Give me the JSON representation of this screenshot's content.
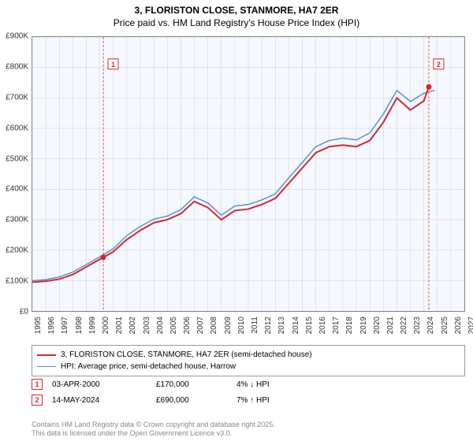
{
  "title": {
    "line1": "3, FLORISTON CLOSE, STANMORE, HA7 2ER",
    "line2": "Price paid vs. HM Land Registry's House Price Index (HPI)",
    "fontsize": 12,
    "color": "#000000"
  },
  "chart": {
    "type": "line",
    "background_color": "#f5f9ff",
    "border_color": "#888888",
    "grid_color": "#cccccc",
    "x_axis": {
      "min": 1995,
      "max": 2027,
      "ticks": [
        1995,
        1996,
        1997,
        1998,
        1999,
        2000,
        2001,
        2002,
        2003,
        2004,
        2005,
        2006,
        2007,
        2008,
        2009,
        2010,
        2011,
        2012,
        2013,
        2014,
        2015,
        2016,
        2017,
        2018,
        2019,
        2020,
        2021,
        2022,
        2023,
        2024,
        2025,
        2026,
        2027
      ],
      "label_fontsize": 10,
      "label_rotation": -90
    },
    "y_axis": {
      "min": 0,
      "max": 900000,
      "ticks": [
        0,
        100000,
        200000,
        300000,
        400000,
        500000,
        600000,
        700000,
        800000,
        900000
      ],
      "tick_labels": [
        "£0",
        "£100K",
        "£200K",
        "£300K",
        "£400K",
        "£500K",
        "£600K",
        "£700K",
        "£800K",
        "£900K"
      ],
      "label_fontsize": 10
    },
    "series": [
      {
        "name": "price_paid",
        "label": "3, FLORISTON CLOSE, STANMORE, HA7 2ER (semi-detached house)",
        "color": "#d62728",
        "line_width": 2,
        "x": [
          1995,
          1996,
          1997,
          1998,
          1999,
          2000,
          2001,
          2002,
          2003,
          2004,
          2005,
          2006,
          2007,
          2008,
          2009,
          2010,
          2011,
          2012,
          2013,
          2014,
          2015,
          2016,
          2017,
          2018,
          2019,
          2020,
          2021,
          2022,
          2023,
          2024,
          2024.4
        ],
        "y": [
          95000,
          98000,
          105000,
          120000,
          145000,
          170000,
          195000,
          235000,
          265000,
          290000,
          300000,
          320000,
          360000,
          340000,
          300000,
          330000,
          335000,
          350000,
          370000,
          420000,
          470000,
          520000,
          540000,
          545000,
          540000,
          560000,
          620000,
          700000,
          660000,
          690000,
          740000
        ]
      },
      {
        "name": "hpi",
        "label": "HPI: Average price, semi-detached house, Harrow",
        "color": "#5b8fd4",
        "line_width": 1.5,
        "x": [
          1995,
          1996,
          1997,
          1998,
          1999,
          2000,
          2001,
          2002,
          2003,
          2004,
          2005,
          2006,
          2007,
          2008,
          2009,
          2010,
          2011,
          2012,
          2013,
          2014,
          2015,
          2016,
          2017,
          2018,
          2019,
          2020,
          2021,
          2022,
          2023,
          2024,
          2024.8
        ],
        "y": [
          100000,
          103000,
          112000,
          128000,
          153000,
          178000,
          205000,
          248000,
          278000,
          302000,
          312000,
          333000,
          375000,
          355000,
          315000,
          345000,
          350000,
          365000,
          385000,
          438000,
          488000,
          540000,
          560000,
          568000,
          562000,
          585000,
          647000,
          725000,
          688000,
          715000,
          725000
        ]
      }
    ],
    "markers": [
      {
        "num": "1",
        "x": 2000.26,
        "date": "03-APR-2000",
        "price": "£170,000",
        "hpi_delta": "4% ↓ HPI",
        "box_color": "#d62728"
      },
      {
        "num": "2",
        "x": 2024.37,
        "date": "14-MAY-2024",
        "price": "£690,000",
        "hpi_delta": "7% ↑ HPI",
        "box_color": "#d62728"
      }
    ]
  },
  "legend": {
    "border_color": "#999999",
    "fontsize": 10
  },
  "footer": {
    "line1": "Contains HM Land Registry data © Crown copyright and database right 2025.",
    "line2": "This data is licensed under the Open Government Licence v3.0.",
    "color": "#888888",
    "fontsize": 9
  }
}
